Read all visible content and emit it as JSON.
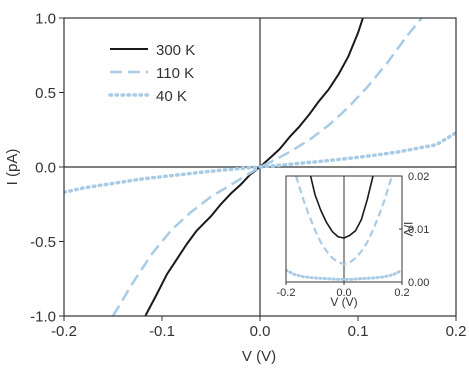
{
  "chart_data": [
    {
      "type": "line",
      "xlabel": "V (V)",
      "ylabel": "I (pA)",
      "xlim": [
        -0.2,
        0.2
      ],
      "ylim": [
        -1.0,
        1.0
      ],
      "xticks": [
        "-0.2",
        "-0.1",
        "0.0",
        "0.1",
        "0.2"
      ],
      "yticks": [
        "-1.0",
        "-0.5",
        "0.0",
        "0.5",
        "1.0"
      ],
      "legend_position": "top-left",
      "reference_lines": {
        "x": 0.0,
        "y": 0.0
      },
      "series": [
        {
          "name": "300 K",
          "color": "#1a1a1a",
          "dash": "solid",
          "x": [
            -0.117,
            -0.105,
            -0.095,
            -0.085,
            -0.075,
            -0.065,
            -0.05,
            -0.04,
            -0.03,
            -0.02,
            -0.01,
            0.0,
            0.01,
            0.02,
            0.03,
            0.04,
            0.05,
            0.06,
            0.07,
            0.08,
            0.09,
            0.1,
            0.105
          ],
          "y": [
            -1.0,
            -0.85,
            -0.72,
            -0.62,
            -0.52,
            -0.43,
            -0.33,
            -0.25,
            -0.18,
            -0.12,
            -0.05,
            0.0,
            0.06,
            0.12,
            0.2,
            0.27,
            0.35,
            0.44,
            0.52,
            0.62,
            0.74,
            0.9,
            1.0
          ]
        },
        {
          "name": "110 K",
          "color": "#a8cce6",
          "dash": "dashed",
          "x": [
            -0.15,
            -0.13,
            -0.11,
            -0.09,
            -0.07,
            -0.05,
            -0.03,
            -0.01,
            0.0,
            0.01,
            0.03,
            0.05,
            0.07,
            0.09,
            0.11,
            0.13,
            0.15,
            0.165
          ],
          "y": [
            -1.0,
            -0.78,
            -0.58,
            -0.42,
            -0.3,
            -0.2,
            -0.12,
            -0.04,
            0.0,
            0.03,
            0.1,
            0.18,
            0.28,
            0.4,
            0.54,
            0.7,
            0.88,
            1.0
          ]
        },
        {
          "name": "40 K",
          "color": "#a8cce6",
          "dash": "dotted",
          "x": [
            -0.2,
            -0.18,
            -0.16,
            -0.14,
            -0.12,
            -0.1,
            -0.08,
            -0.06,
            -0.04,
            -0.02,
            0.0,
            0.02,
            0.04,
            0.06,
            0.08,
            0.1,
            0.12,
            0.14,
            0.16,
            0.18,
            0.2
          ],
          "y": [
            -0.17,
            -0.14,
            -0.12,
            -0.1,
            -0.08,
            -0.065,
            -0.05,
            -0.035,
            -0.022,
            -0.01,
            0.0,
            0.012,
            0.024,
            0.037,
            0.05,
            0.065,
            0.082,
            0.1,
            0.125,
            0.15,
            0.23
          ]
        }
      ]
    },
    {
      "type": "line",
      "role": "inset",
      "xlabel": "V (V)",
      "ylabel": "I/V",
      "xlim": [
        -0.2,
        0.2
      ],
      "ylim": [
        0.0,
        0.02
      ],
      "xticks": [
        "-0.2",
        "0.0",
        "0.2"
      ],
      "yticks": [
        "0.00",
        "0.01",
        "0.02"
      ],
      "reference_lines": {
        "x": 0.0
      },
      "series": [
        {
          "color": "#1a1a1a",
          "dash": "solid",
          "x": [
            -0.115,
            -0.1,
            -0.08,
            -0.06,
            -0.04,
            -0.02,
            0.0,
            0.02,
            0.04,
            0.06,
            0.08,
            0.1
          ],
          "y": [
            0.02,
            0.0165,
            0.0135,
            0.0112,
            0.0095,
            0.0085,
            0.0083,
            0.0088,
            0.0097,
            0.0118,
            0.0155,
            0.02
          ]
        },
        {
          "color": "#a8cce6",
          "dash": "dashed",
          "x": [
            -0.165,
            -0.14,
            -0.12,
            -0.1,
            -0.08,
            -0.06,
            -0.04,
            -0.02,
            0.0,
            0.02,
            0.04,
            0.06,
            0.08,
            0.1,
            0.12,
            0.14,
            0.165
          ],
          "y": [
            0.02,
            0.0155,
            0.0125,
            0.0098,
            0.0075,
            0.0058,
            0.0045,
            0.0037,
            0.0034,
            0.0037,
            0.0045,
            0.0058,
            0.0075,
            0.0098,
            0.0125,
            0.0155,
            0.02
          ]
        },
        {
          "color": "#a8cce6",
          "dash": "dotted",
          "x": [
            -0.2,
            -0.17,
            -0.14,
            -0.11,
            -0.08,
            -0.05,
            -0.02,
            0.0,
            0.02,
            0.05,
            0.08,
            0.11,
            0.14,
            0.17,
            0.2
          ],
          "y": [
            0.0022,
            0.0014,
            0.001,
            0.0008,
            0.0007,
            0.0006,
            0.0005,
            0.0005,
            0.0005,
            0.0006,
            0.0007,
            0.0008,
            0.001,
            0.0014,
            0.0022
          ]
        }
      ]
    }
  ]
}
